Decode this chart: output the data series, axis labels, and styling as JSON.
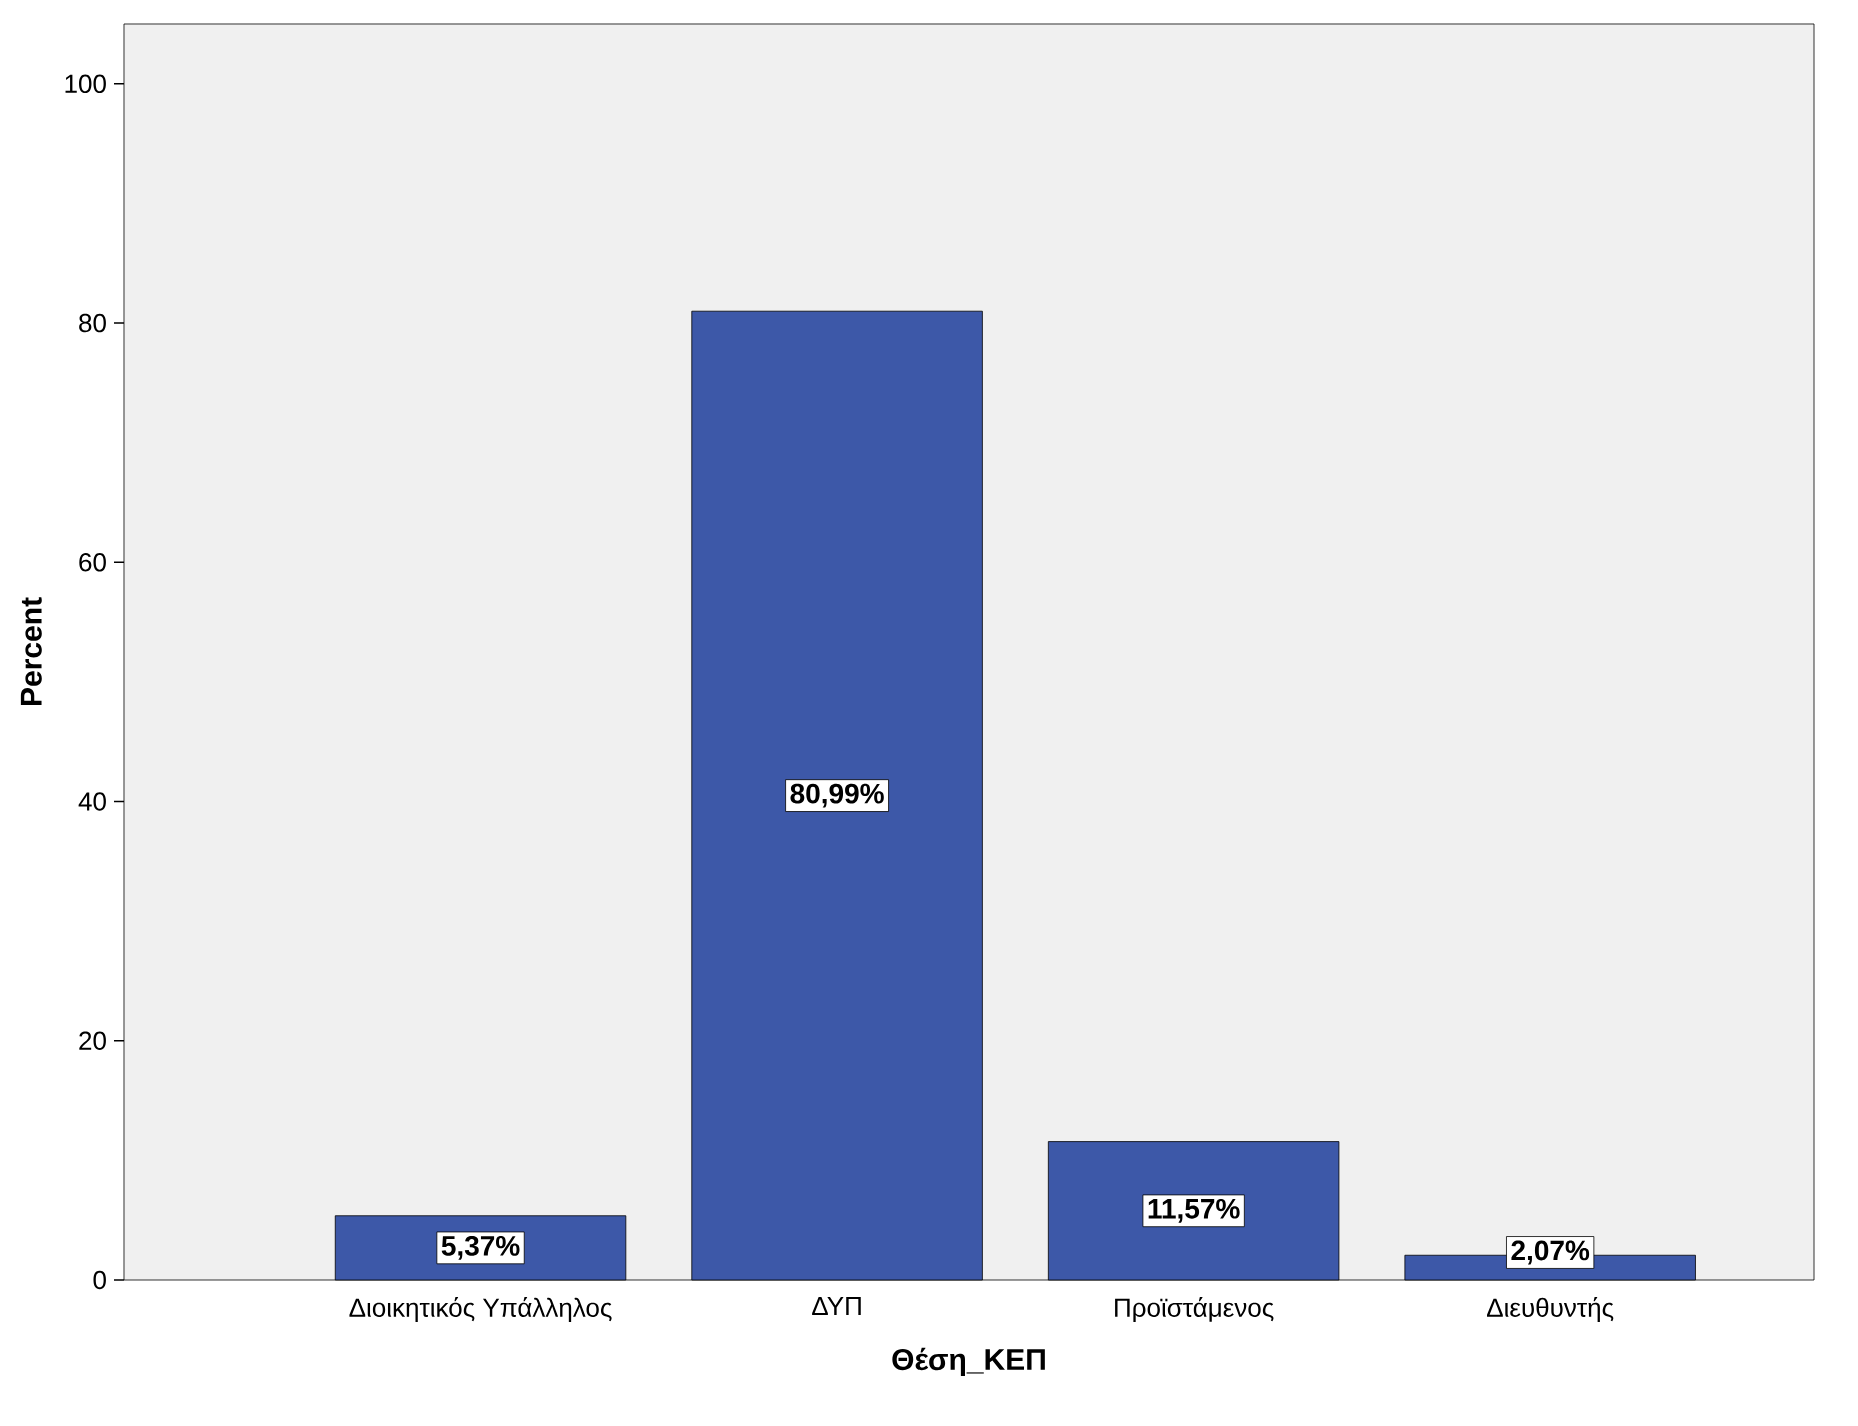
{
  "chart_data": {
    "type": "bar",
    "xlabel": "Θέση_ΚΕΠ",
    "ylabel": "Percent",
    "categories": [
      "Διοικητικός Υπάλληλος",
      "ΔΥΠ",
      "Προϊστάμενος",
      "Διευθυντής"
    ],
    "values": [
      5.37,
      80.99,
      11.57,
      2.07
    ],
    "value_labels": [
      "5,37%",
      "80,99%",
      "11,57%",
      "2,07%"
    ],
    "color": "#3d58a8",
    "ylim": [
      0,
      105
    ],
    "yticks": [
      0,
      20,
      40,
      60,
      80,
      100
    ],
    "grid": false
  }
}
